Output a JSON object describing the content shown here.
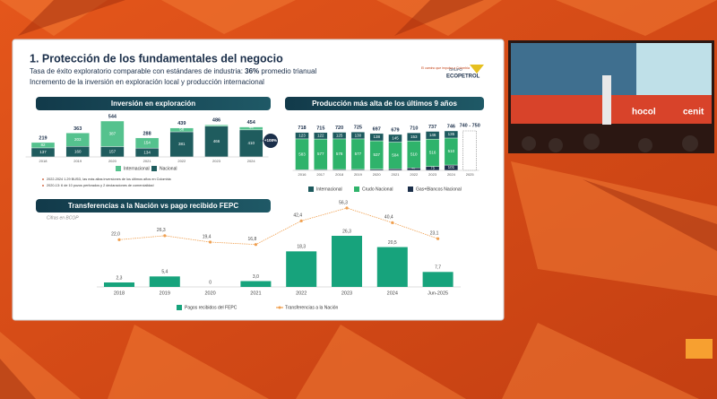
{
  "slide": {
    "title": "1. Protección de los fundamentales del negocio",
    "subtitle_1a": "Tasa de éxito exploratorio comparable con estándares de industria: ",
    "subtitle_1b": "36%",
    "subtitle_1c": " promedio trianual",
    "subtitle_2": "Incremento de la inversión en exploración local y producción internacional",
    "logo_tagline": "El camino que impulsa a Colombia",
    "logo_group": "GRUPO",
    "logo_name": "ECOPETROL"
  },
  "video": {
    "sign_1": "hocol",
    "sign_2": "cenit"
  },
  "chart_data": [
    {
      "type": "stacked_bar",
      "title": "Inversión en exploración",
      "categories": [
        "2018",
        "2019",
        "2020",
        "2021",
        "2022",
        "2023",
        "2024"
      ],
      "series": [
        {
          "name": "Internacional",
          "color": "#55c28e",
          "values": [
            82,
            203,
            387,
            154,
            58,
            20,
            44
          ]
        },
        {
          "name": "Nacional",
          "color": "#1f5c5e",
          "values": [
            137,
            160,
            157,
            134,
            381,
            466,
            410
          ]
        }
      ],
      "totals": [
        219,
        363,
        544,
        288,
        439,
        486,
        454
      ],
      "badge": "+108%",
      "notes": [
        "2022-2024 1.29 BUSD, las más altas inversiones de los últimos años en Colombia",
        "2020-13: 6 de 10 pozos perforados y 2 declaraciones de comercialidad"
      ]
    },
    {
      "type": "stacked_bar",
      "title": "Producción más alta de los últimos 9 años",
      "categories": [
        "2016",
        "2017",
        "2018",
        "2019",
        "2020",
        "2021",
        "2022",
        "2023",
        "2024",
        "2025"
      ],
      "series": [
        {
          "name": "Internacional",
          "color": "#1d5a5e",
          "values": [
            123,
            122,
            125,
            130,
            138,
            145,
            153,
            146,
            135,
            null
          ]
        },
        {
          "name": "Crudo Nacional",
          "color": "#2fb36b",
          "values": [
            583,
            577,
            578,
            577,
            537,
            504,
            510,
            516,
            510,
            null
          ]
        },
        {
          "name": "Gas+Blancos Nacional",
          "color": "#1b2f4a",
          "values": [
            12,
            16,
            17,
            18,
            22,
            30,
            47,
            75,
            101,
            null
          ]
        }
      ],
      "totals": [
        718,
        715,
        720,
        725,
        697,
        679,
        710,
        737,
        746,
        null
      ],
      "total_labels": [
        "718",
        "715",
        "720",
        "725",
        "697",
        "679",
        "710",
        "737",
        "746",
        "740 - 750"
      ]
    },
    {
      "type": "bar_line",
      "title": "Transferencias a la Nación vs pago recibido FEPC",
      "subtitle": "Cifras en BCOP",
      "categories": [
        "2018",
        "2019",
        "2020",
        "2021",
        "2022",
        "2023",
        "2024",
        "Jun-2025"
      ],
      "series": [
        {
          "name": "Pagos recibidos del FEPC",
          "color": "#17a37c",
          "values": [
            2.3,
            5.4,
            0,
            3.0,
            18.3,
            26.3,
            20.5,
            7.7
          ],
          "value_labels": [
            "2,3",
            "5,4",
            "0",
            "3,0",
            "18,3",
            "26,3",
            "20,5",
            "7,7"
          ]
        },
        {
          "name": "Transferencias a la Nación",
          "color": "#f0a050",
          "values": [
            22.0,
            26.3,
            19.4,
            16.8,
            42.4,
            56.3,
            40.4,
            23.1
          ],
          "value_labels": [
            "22,0",
            "26,3",
            "19,4",
            "16,8",
            "42,4",
            "56,3",
            "40,4",
            "23,1"
          ]
        }
      ]
    }
  ]
}
